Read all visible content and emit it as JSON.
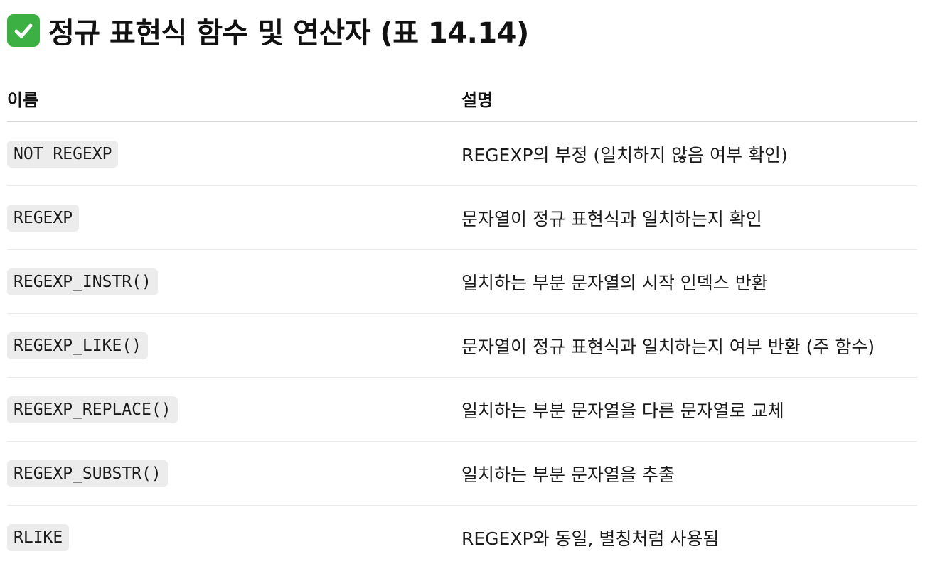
{
  "heading": {
    "icon": "check-mark-button-icon",
    "icon_color": "#3cb043",
    "text": "정규 표현식 함수 및 연산자 (표 14.14)"
  },
  "table": {
    "headers": [
      "이름",
      "설명"
    ],
    "rows": [
      {
        "name": "NOT REGEXP",
        "description": "REGEXP의 부정 (일치하지 않음 여부 확인)"
      },
      {
        "name": "REGEXP",
        "description": "문자열이 정규 표현식과 일치하는지 확인"
      },
      {
        "name": "REGEXP_INSTR()",
        "description": "일치하는 부분 문자열의 시작 인덱스 반환"
      },
      {
        "name": "REGEXP_LIKE()",
        "description": "문자열이 정규 표현식과 일치하는지 여부 반환 (주 함수)"
      },
      {
        "name": "REGEXP_REPLACE()",
        "description": "일치하는 부분 문자열을 다른 문자열로 교체"
      },
      {
        "name": "REGEXP_SUBSTR()",
        "description": "일치하는 부분 문자열을 추출"
      },
      {
        "name": "RLIKE",
        "description": "REGEXP와 동일, 별칭처럼 사용됨"
      }
    ]
  }
}
